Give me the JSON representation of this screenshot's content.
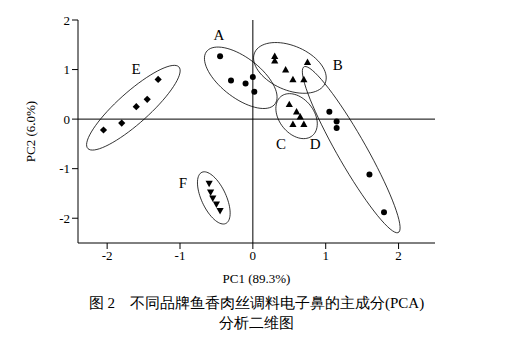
{
  "chart_data": {
    "type": "scatter",
    "title": "图 2　不同品牌鱼香肉丝调料电子鼻的主成分(PCA)\n分析二维图",
    "x_label": "PC1 (89.3%)",
    "y_label": "PC2 (6.0%)",
    "xlim": [
      -2.4,
      2.5
    ],
    "xticks": [
      -2,
      -1,
      0,
      1,
      2
    ],
    "ylim": [
      -2.5,
      2
    ],
    "yticks": [
      -2,
      -1,
      0,
      1,
      2
    ],
    "color": "#000000",
    "grid": false,
    "series": [
      {
        "name": "A",
        "marker": "circle",
        "x": [
          -0.45,
          -0.3,
          -0.1,
          0.0,
          0.02
        ],
        "values": [
          1.27,
          0.78,
          0.72,
          0.85,
          0.55
        ]
      },
      {
        "name": "B",
        "marker": "triangle",
        "x": [
          0.3,
          0.3,
          0.45,
          0.55,
          0.7,
          0.75
        ],
        "values": [
          1.27,
          1.18,
          1.0,
          0.8,
          0.8,
          1.15
        ]
      },
      {
        "name": "C",
        "marker": "triangle",
        "x": [
          0.5,
          0.55,
          0.6,
          0.65,
          0.7
        ],
        "values": [
          0.3,
          -0.1,
          0.15,
          0.05,
          -0.1
        ]
      },
      {
        "name": "D",
        "marker": "circle",
        "x": [
          1.05,
          1.15,
          1.15,
          1.6,
          1.8
        ],
        "values": [
          0.15,
          -0.05,
          -0.18,
          -1.12,
          -1.88
        ]
      },
      {
        "name": "E",
        "marker": "diamond",
        "x": [
          -2.05,
          -1.8,
          -1.6,
          -1.45,
          -1.3
        ],
        "values": [
          -0.22,
          -0.08,
          0.25,
          0.4,
          0.8
        ]
      },
      {
        "name": "F",
        "marker": "triangle-down",
        "x": [
          -0.6,
          -0.58,
          -0.55,
          -0.5,
          -0.45
        ],
        "values": [
          -1.3,
          -1.48,
          -1.6,
          -1.72,
          -1.85
        ]
      }
    ]
  }
}
